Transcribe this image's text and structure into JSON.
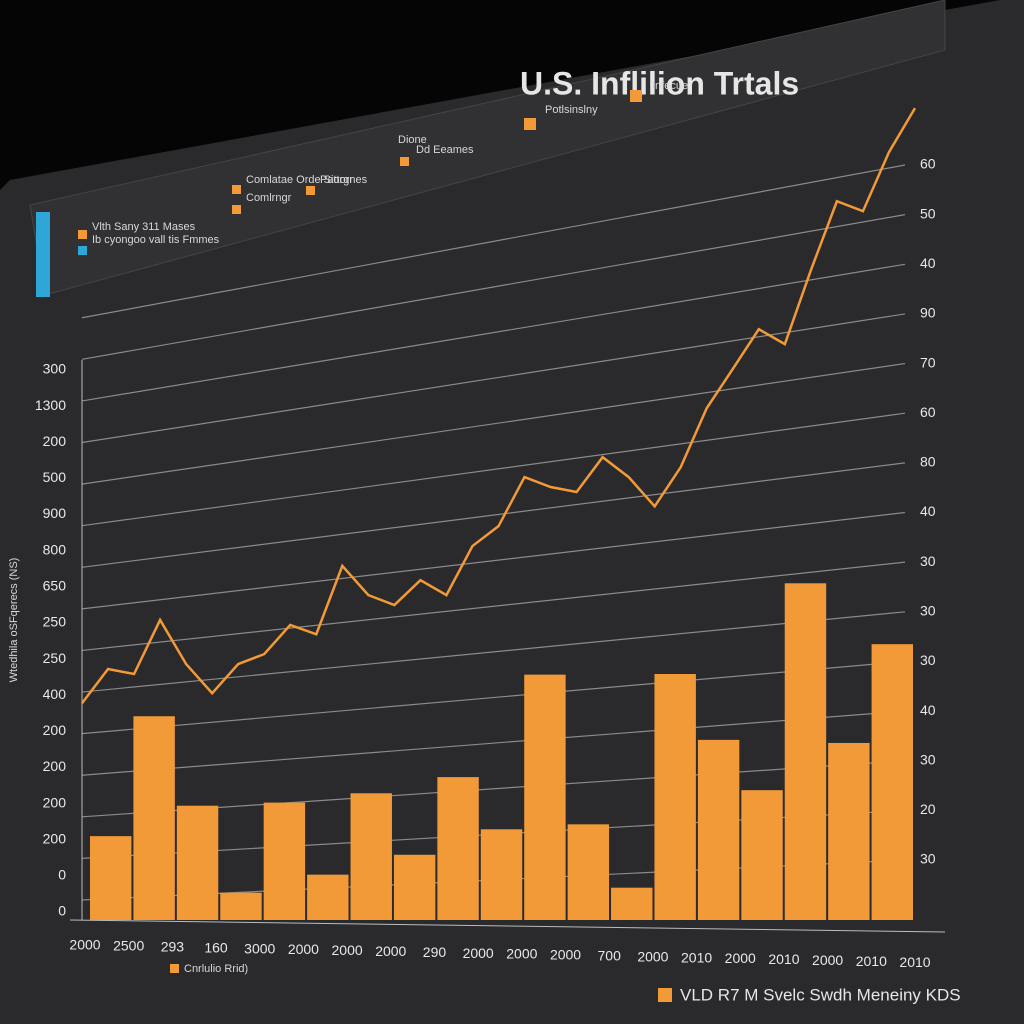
{
  "chart_data": {
    "type": "bar",
    "title": "U.S. Inflilion Trtals",
    "legend_labels": [
      "Vlth Sany 311 Mases",
      "Ib cyongoo vall tis Fmmes",
      "Comlatae Orde Siorgr",
      "Comlrngr",
      "Pattornes",
      "Dione",
      "Dd Eeames",
      "Potlsinslny",
      "Infecue"
    ],
    "y_axis_label": "Wtedhila oSFqerecs (NS)",
    "left_axis_labels": [
      "300",
      "1300",
      "200",
      "500",
      "900",
      "800",
      "650",
      "250",
      "250",
      "400",
      "200",
      "200",
      "200",
      "200",
      "0",
      "0"
    ],
    "right_axis_labels": [
      "60",
      "50",
      "40",
      "90",
      "70",
      "60",
      "80",
      "40",
      "30",
      "30",
      "30",
      "40",
      "30",
      "20",
      "30"
    ],
    "x_axis_labels": [
      "2000",
      "2500",
      "293",
      "160",
      "3000",
      "2000",
      "2000",
      "2000",
      "290",
      "2000",
      "2000",
      "2000",
      "700",
      "2000",
      "2010",
      "2000",
      "2010",
      "2000",
      "2010",
      "2010"
    ],
    "footer_left": "Cnrlulio Rrid)",
    "footer_right": "VLD R7 M Svelc Swdh Meneiny KDS",
    "ylim": [
      0,
      132
    ],
    "bar_color": "#f29a38",
    "line_color": "#f29a38",
    "values": [
      13.5,
      32.8,
      18.4,
      4.4,
      18.9,
      7.3,
      20.4,
      10.5,
      23,
      14.6,
      39.5,
      15.4,
      5.2,
      39.6,
      29,
      20.9,
      54.2,
      28.5,
      44.4
    ],
    "line_values": [
      34.9,
      40.4,
      39.6,
      48.3,
      41.2,
      36.5,
      41.2,
      42.8,
      47.5,
      46,
      57,
      52.3,
      50.7,
      54.7,
      52.3,
      60.2,
      63.4,
      71.3,
      69.7,
      68.9,
      74.5,
      71.3,
      66.6,
      72.9,
      82.4,
      88.7,
      95.1,
      92.7,
      104.6,
      115.7,
      114.1,
      123.6,
      130.7
    ]
  }
}
